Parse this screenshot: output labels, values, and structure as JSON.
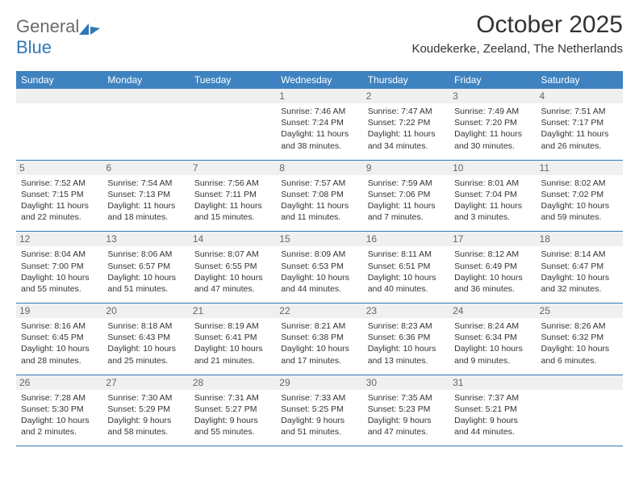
{
  "logo": {
    "part1": "General",
    "part2": "Blue"
  },
  "title": "October 2025",
  "location": "Koudekerke, Zeeland, The Netherlands",
  "day_names": [
    "Sunday",
    "Monday",
    "Tuesday",
    "Wednesday",
    "Thursday",
    "Friday",
    "Saturday"
  ],
  "colors": {
    "header_bg": "#3e83c0",
    "header_text": "#ffffff",
    "day_bg": "#f0f0f0",
    "day_text": "#666666",
    "cell_border": "#2f78b7",
    "body_text": "#333333",
    "logo_gray": "#6b6b6b",
    "logo_blue": "#2f78b7"
  },
  "weeks": [
    [
      {
        "n": "",
        "sr": "",
        "ss": "",
        "dl": ""
      },
      {
        "n": "",
        "sr": "",
        "ss": "",
        "dl": ""
      },
      {
        "n": "",
        "sr": "",
        "ss": "",
        "dl": ""
      },
      {
        "n": "1",
        "sr": "Sunrise: 7:46 AM",
        "ss": "Sunset: 7:24 PM",
        "dl": "Daylight: 11 hours and 38 minutes."
      },
      {
        "n": "2",
        "sr": "Sunrise: 7:47 AM",
        "ss": "Sunset: 7:22 PM",
        "dl": "Daylight: 11 hours and 34 minutes."
      },
      {
        "n": "3",
        "sr": "Sunrise: 7:49 AM",
        "ss": "Sunset: 7:20 PM",
        "dl": "Daylight: 11 hours and 30 minutes."
      },
      {
        "n": "4",
        "sr": "Sunrise: 7:51 AM",
        "ss": "Sunset: 7:17 PM",
        "dl": "Daylight: 11 hours and 26 minutes."
      }
    ],
    [
      {
        "n": "5",
        "sr": "Sunrise: 7:52 AM",
        "ss": "Sunset: 7:15 PM",
        "dl": "Daylight: 11 hours and 22 minutes."
      },
      {
        "n": "6",
        "sr": "Sunrise: 7:54 AM",
        "ss": "Sunset: 7:13 PM",
        "dl": "Daylight: 11 hours and 18 minutes."
      },
      {
        "n": "7",
        "sr": "Sunrise: 7:56 AM",
        "ss": "Sunset: 7:11 PM",
        "dl": "Daylight: 11 hours and 15 minutes."
      },
      {
        "n": "8",
        "sr": "Sunrise: 7:57 AM",
        "ss": "Sunset: 7:08 PM",
        "dl": "Daylight: 11 hours and 11 minutes."
      },
      {
        "n": "9",
        "sr": "Sunrise: 7:59 AM",
        "ss": "Sunset: 7:06 PM",
        "dl": "Daylight: 11 hours and 7 minutes."
      },
      {
        "n": "10",
        "sr": "Sunrise: 8:01 AM",
        "ss": "Sunset: 7:04 PM",
        "dl": "Daylight: 11 hours and 3 minutes."
      },
      {
        "n": "11",
        "sr": "Sunrise: 8:02 AM",
        "ss": "Sunset: 7:02 PM",
        "dl": "Daylight: 10 hours and 59 minutes."
      }
    ],
    [
      {
        "n": "12",
        "sr": "Sunrise: 8:04 AM",
        "ss": "Sunset: 7:00 PM",
        "dl": "Daylight: 10 hours and 55 minutes."
      },
      {
        "n": "13",
        "sr": "Sunrise: 8:06 AM",
        "ss": "Sunset: 6:57 PM",
        "dl": "Daylight: 10 hours and 51 minutes."
      },
      {
        "n": "14",
        "sr": "Sunrise: 8:07 AM",
        "ss": "Sunset: 6:55 PM",
        "dl": "Daylight: 10 hours and 47 minutes."
      },
      {
        "n": "15",
        "sr": "Sunrise: 8:09 AM",
        "ss": "Sunset: 6:53 PM",
        "dl": "Daylight: 10 hours and 44 minutes."
      },
      {
        "n": "16",
        "sr": "Sunrise: 8:11 AM",
        "ss": "Sunset: 6:51 PM",
        "dl": "Daylight: 10 hours and 40 minutes."
      },
      {
        "n": "17",
        "sr": "Sunrise: 8:12 AM",
        "ss": "Sunset: 6:49 PM",
        "dl": "Daylight: 10 hours and 36 minutes."
      },
      {
        "n": "18",
        "sr": "Sunrise: 8:14 AM",
        "ss": "Sunset: 6:47 PM",
        "dl": "Daylight: 10 hours and 32 minutes."
      }
    ],
    [
      {
        "n": "19",
        "sr": "Sunrise: 8:16 AM",
        "ss": "Sunset: 6:45 PM",
        "dl": "Daylight: 10 hours and 28 minutes."
      },
      {
        "n": "20",
        "sr": "Sunrise: 8:18 AM",
        "ss": "Sunset: 6:43 PM",
        "dl": "Daylight: 10 hours and 25 minutes."
      },
      {
        "n": "21",
        "sr": "Sunrise: 8:19 AM",
        "ss": "Sunset: 6:41 PM",
        "dl": "Daylight: 10 hours and 21 minutes."
      },
      {
        "n": "22",
        "sr": "Sunrise: 8:21 AM",
        "ss": "Sunset: 6:38 PM",
        "dl": "Daylight: 10 hours and 17 minutes."
      },
      {
        "n": "23",
        "sr": "Sunrise: 8:23 AM",
        "ss": "Sunset: 6:36 PM",
        "dl": "Daylight: 10 hours and 13 minutes."
      },
      {
        "n": "24",
        "sr": "Sunrise: 8:24 AM",
        "ss": "Sunset: 6:34 PM",
        "dl": "Daylight: 10 hours and 9 minutes."
      },
      {
        "n": "25",
        "sr": "Sunrise: 8:26 AM",
        "ss": "Sunset: 6:32 PM",
        "dl": "Daylight: 10 hours and 6 minutes."
      }
    ],
    [
      {
        "n": "26",
        "sr": "Sunrise: 7:28 AM",
        "ss": "Sunset: 5:30 PM",
        "dl": "Daylight: 10 hours and 2 minutes."
      },
      {
        "n": "27",
        "sr": "Sunrise: 7:30 AM",
        "ss": "Sunset: 5:29 PM",
        "dl": "Daylight: 9 hours and 58 minutes."
      },
      {
        "n": "28",
        "sr": "Sunrise: 7:31 AM",
        "ss": "Sunset: 5:27 PM",
        "dl": "Daylight: 9 hours and 55 minutes."
      },
      {
        "n": "29",
        "sr": "Sunrise: 7:33 AM",
        "ss": "Sunset: 5:25 PM",
        "dl": "Daylight: 9 hours and 51 minutes."
      },
      {
        "n": "30",
        "sr": "Sunrise: 7:35 AM",
        "ss": "Sunset: 5:23 PM",
        "dl": "Daylight: 9 hours and 47 minutes."
      },
      {
        "n": "31",
        "sr": "Sunrise: 7:37 AM",
        "ss": "Sunset: 5:21 PM",
        "dl": "Daylight: 9 hours and 44 minutes."
      },
      {
        "n": "",
        "sr": "",
        "ss": "",
        "dl": ""
      }
    ]
  ]
}
